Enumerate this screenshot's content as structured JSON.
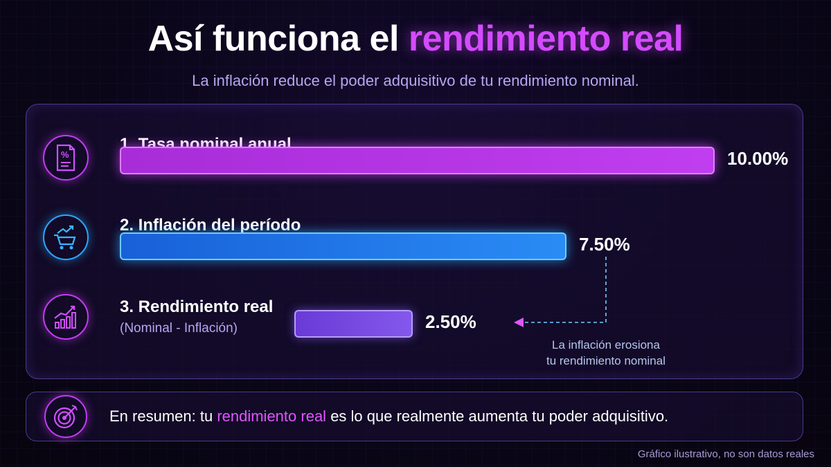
{
  "header": {
    "title_prefix": "Así funciona el",
    "title_highlight": "rendimiento real",
    "subtitle": "La inflación reduce el poder adquisitivo de tu rendimiento nominal."
  },
  "chart_data": {
    "type": "bar",
    "orientation": "horizontal",
    "categories": [
      "1. Tasa nominal anual",
      "2. Inflación del período",
      "3. Rendimiento real"
    ],
    "values": [
      10.0,
      7.5,
      2.5
    ],
    "value_labels": [
      "10.00%",
      "7.50%",
      "2.50%"
    ],
    "category_sublabels": [
      "",
      "",
      "(Nominal - Inflación)"
    ],
    "unit": "%",
    "grid": false
  },
  "rows": [
    {
      "label": "1. Tasa nominal anual",
      "value_label": "10.00%",
      "icon": "percent-document-icon"
    },
    {
      "label": "2. Inflación del período",
      "value_label": "7.50%",
      "icon": "shopping-cart-trend-icon"
    },
    {
      "label": "3. Rendimiento real",
      "sublabel": "(Nominal - Inflación)",
      "value_label": "2.50%",
      "icon": "bar-chart-growth-icon"
    }
  ],
  "annotation": {
    "line1": "La inflación erosiona",
    "line2": "tu rendimiento nominal"
  },
  "summary": {
    "prefix": "En resumen: tu",
    "highlight": "rendimiento real",
    "suffix": "es lo que realmente aumenta tu poder adquisitivo.",
    "icon": "target-icon"
  },
  "footnote": "Gráfico ilustrativo, no son datos reales",
  "colors": {
    "magenta": "#c03ef0",
    "cyan": "#2a8cf5",
    "violet": "#8458ec",
    "background": "#0a0618"
  }
}
